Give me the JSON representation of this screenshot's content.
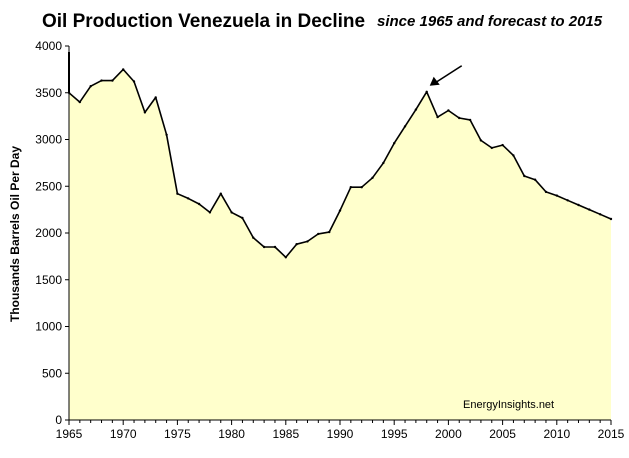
{
  "chart_data": {
    "type": "area",
    "title": "Oil Production Venezuela in Decline",
    "subtitle": "since 1965 and forecast to 2015",
    "xlabel": "",
    "ylabel": "Thousands Barrels Oil Per Day",
    "xlim": [
      1965,
      2015
    ],
    "ylim": [
      0,
      4000
    ],
    "x_ticks": [
      "1965",
      "1970",
      "1975",
      "1980",
      "1985",
      "1990",
      "1995",
      "2000",
      "2005",
      "2010",
      "2015"
    ],
    "y_ticks": [
      "0",
      "500",
      "1000",
      "1500",
      "2000",
      "2500",
      "3000",
      "3500",
      "4000"
    ],
    "annotation": "EnergyInsights.net",
    "arrow_target": {
      "x": 1998,
      "y": 3500
    },
    "series": [
      {
        "name": "Oil production",
        "x": [
          1965,
          1966,
          1967,
          1968,
          1969,
          1970,
          1971,
          1972,
          1973,
          1974,
          1975,
          1976,
          1977,
          1978,
          1979,
          1980,
          1981,
          1982,
          1983,
          1984,
          1985,
          1986,
          1987,
          1988,
          1989,
          1990,
          1991,
          1992,
          1993,
          1994,
          1995,
          1996,
          1997,
          1998,
          1999,
          2000,
          2001,
          2002,
          2003,
          2004,
          2005,
          2006,
          2007,
          2008,
          2009,
          2010,
          2011,
          2012,
          2013,
          2014,
          2015
        ],
        "values": [
          3500,
          3400,
          3570,
          3630,
          3630,
          3750,
          3620,
          3290,
          3450,
          3050,
          2420,
          2370,
          2310,
          2220,
          2420,
          2220,
          2160,
          1950,
          1850,
          1850,
          1740,
          1880,
          1910,
          1990,
          2010,
          2240,
          2490,
          2490,
          2590,
          2750,
          2960,
          3140,
          3320,
          3510,
          3240,
          3310,
          3230,
          3210,
          2990,
          2910,
          2940,
          2830,
          2610,
          2570,
          2440,
          2400,
          2350,
          2300,
          2250,
          2200,
          2150
        ],
        "fill": "#ffffcc",
        "stroke": "#000000"
      }
    ]
  }
}
